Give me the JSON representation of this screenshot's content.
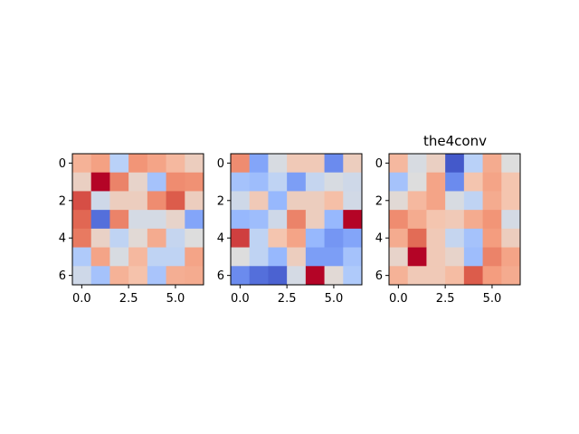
{
  "figure": {
    "background": "#ffffff"
  },
  "chart_data": [
    {
      "type": "heatmap",
      "title": "",
      "colormap": "coolwarm",
      "xticks": [
        0.0,
        2.5,
        5.0
      ],
      "xtick_labels": [
        "0.0",
        "2.5",
        "5.0"
      ],
      "yticks": [
        0,
        2,
        4,
        6
      ],
      "ytick_labels": [
        "0",
        "2",
        "4",
        "6"
      ],
      "xlim": [
        -0.5,
        6.5
      ],
      "ylim": [
        6.5,
        -0.5
      ],
      "values": [
        [
          0.68,
          0.73,
          0.38,
          0.76,
          0.72,
          0.66,
          0.58
        ],
        [
          0.57,
          1.0,
          0.8,
          0.55,
          0.32,
          0.78,
          0.77
        ],
        [
          0.9,
          0.45,
          0.58,
          0.58,
          0.78,
          0.88,
          0.58
        ],
        [
          0.86,
          0.08,
          0.8,
          0.47,
          0.47,
          0.55,
          0.22
        ],
        [
          0.82,
          0.56,
          0.4,
          0.52,
          0.7,
          0.42,
          0.5
        ],
        [
          0.35,
          0.72,
          0.48,
          0.66,
          0.4,
          0.4,
          0.72
        ],
        [
          0.45,
          0.32,
          0.68,
          0.63,
          0.33,
          0.69,
          0.7
        ]
      ]
    },
    {
      "type": "heatmap",
      "title": "",
      "colormap": "coolwarm",
      "xticks": [
        0.0,
        2.5,
        5.0
      ],
      "xtick_labels": [
        "0.0",
        "2.5",
        "5.0"
      ],
      "yticks": [
        0,
        2,
        4,
        6
      ],
      "ytick_labels": [
        "0",
        "2",
        "4",
        "6"
      ],
      "xlim": [
        -0.5,
        6.5
      ],
      "ylim": [
        6.5,
        -0.5
      ],
      "values": [
        [
          0.78,
          0.22,
          0.48,
          0.6,
          0.6,
          0.15,
          0.58
        ],
        [
          0.32,
          0.3,
          0.4,
          0.2,
          0.42,
          0.48,
          0.45
        ],
        [
          0.45,
          0.6,
          0.28,
          0.58,
          0.58,
          0.64,
          0.46
        ],
        [
          0.28,
          0.3,
          0.45,
          0.8,
          0.58,
          0.28,
          1.0
        ],
        [
          0.92,
          0.4,
          0.62,
          0.72,
          0.28,
          0.18,
          0.22
        ],
        [
          0.5,
          0.4,
          0.28,
          0.58,
          0.2,
          0.2,
          0.32
        ],
        [
          0.15,
          0.08,
          0.05,
          0.47,
          1.0,
          0.52,
          0.35
        ]
      ]
    },
    {
      "type": "heatmap",
      "title": "the4conv",
      "colormap": "coolwarm",
      "xticks": [
        0.0,
        2.5,
        5.0
      ],
      "xtick_labels": [
        "0.0",
        "2.5",
        "5.0"
      ],
      "yticks": [
        0,
        2,
        4,
        6
      ],
      "ytick_labels": [
        "0",
        "2",
        "4",
        "6"
      ],
      "xlim": [
        -0.5,
        6.5
      ],
      "ylim": [
        6.5,
        -0.5
      ],
      "values": [
        [
          0.66,
          0.48,
          0.57,
          0.03,
          0.38,
          0.7,
          0.5
        ],
        [
          0.32,
          0.5,
          0.72,
          0.15,
          0.62,
          0.72,
          0.62
        ],
        [
          0.52,
          0.66,
          0.72,
          0.48,
          0.4,
          0.7,
          0.62
        ],
        [
          0.78,
          0.7,
          0.62,
          0.6,
          0.7,
          0.76,
          0.47
        ],
        [
          0.7,
          0.85,
          0.6,
          0.42,
          0.32,
          0.74,
          0.58
        ],
        [
          0.55,
          1.0,
          0.6,
          0.55,
          0.3,
          0.8,
          0.72
        ],
        [
          0.68,
          0.6,
          0.6,
          0.65,
          0.88,
          0.74,
          0.7
        ]
      ]
    }
  ]
}
